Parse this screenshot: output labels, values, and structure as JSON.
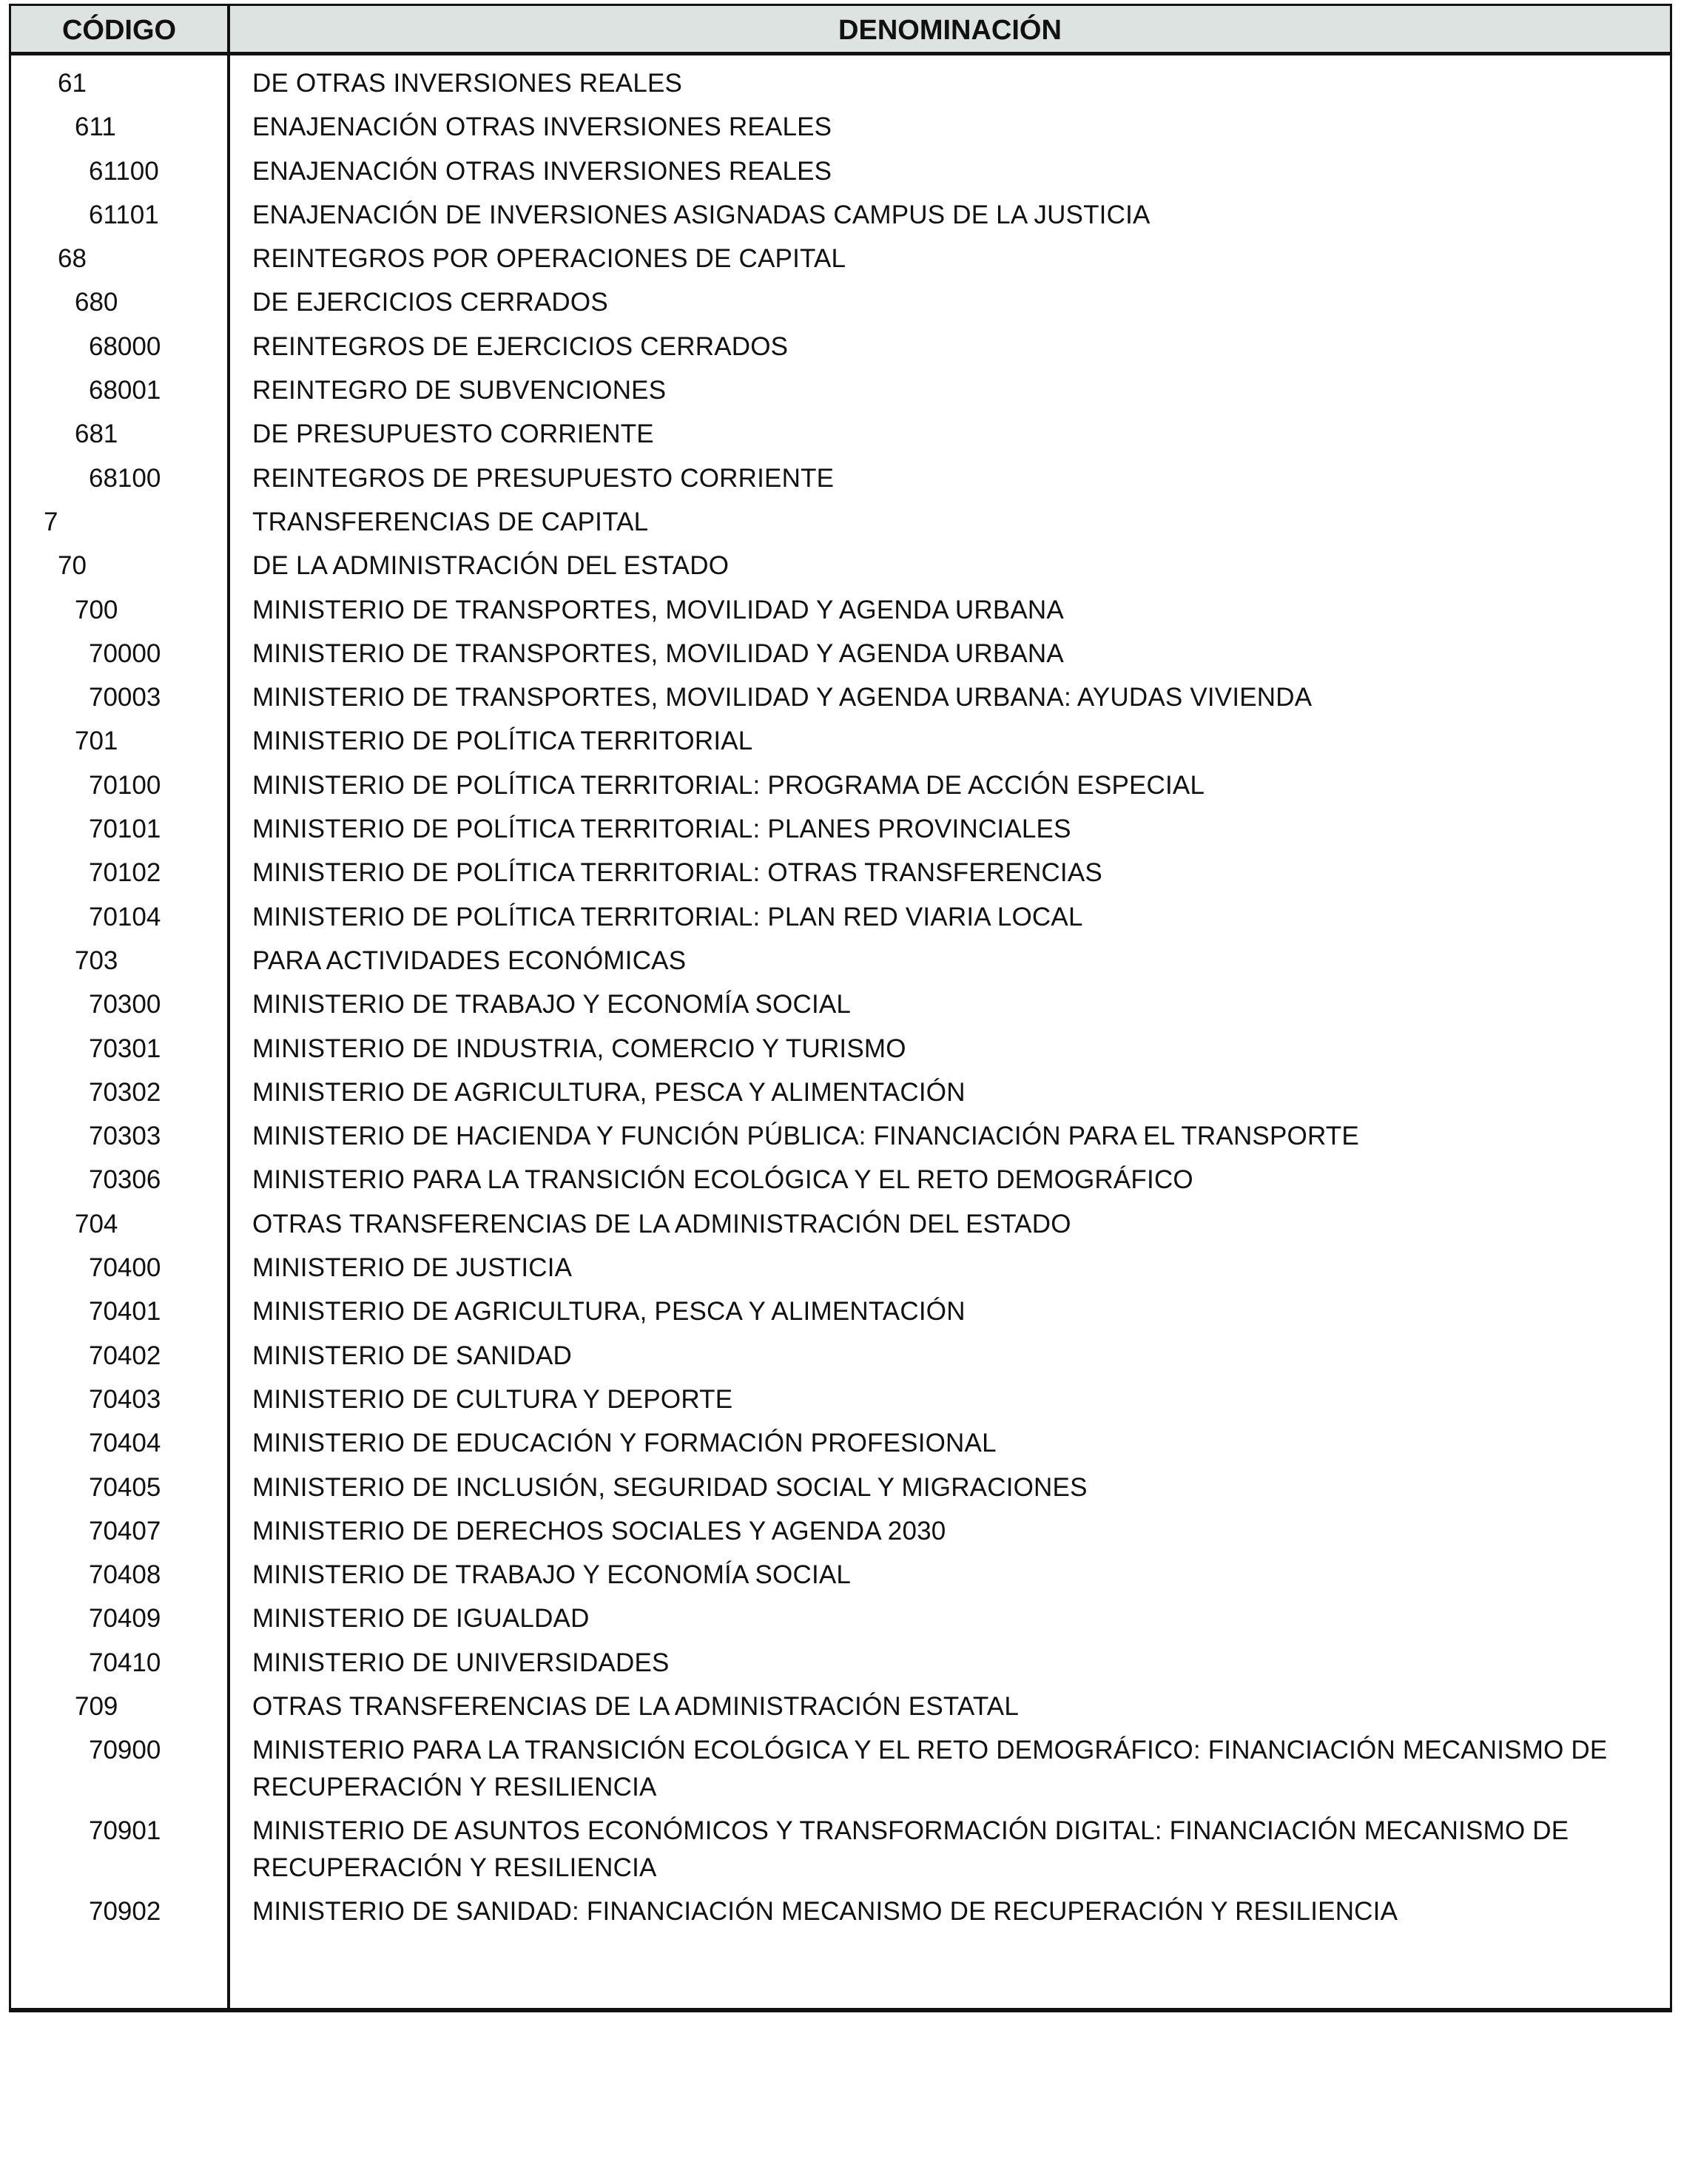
{
  "header": {
    "code": "CÓDIGO",
    "denomination": "DENOMINACIÓN"
  },
  "rows": [
    {
      "code": "61",
      "text": "DE OTRAS INVERSIONES REALES"
    },
    {
      "code": "611",
      "text": "ENAJENACIÓN OTRAS INVERSIONES REALES"
    },
    {
      "code": "61100",
      "text": "ENAJENACIÓN OTRAS INVERSIONES REALES"
    },
    {
      "code": "61101",
      "text": "ENAJENACIÓN DE INVERSIONES ASIGNADAS CAMPUS DE LA JUSTICIA"
    },
    {
      "code": "68",
      "text": "REINTEGROS POR OPERACIONES DE CAPITAL"
    },
    {
      "code": "680",
      "text": "DE EJERCICIOS CERRADOS"
    },
    {
      "code": "68000",
      "text": "REINTEGROS DE EJERCICIOS CERRADOS"
    },
    {
      "code": "68001",
      "text": "REINTEGRO DE SUBVENCIONES"
    },
    {
      "code": "681",
      "text": "DE PRESUPUESTO CORRIENTE"
    },
    {
      "code": "68100",
      "text": "REINTEGROS DE PRESUPUESTO CORRIENTE"
    },
    {
      "code": "7",
      "text": "TRANSFERENCIAS DE CAPITAL"
    },
    {
      "code": "70",
      "text": "DE LA ADMINISTRACIÓN DEL ESTADO"
    },
    {
      "code": "700",
      "text": "MINISTERIO DE TRANSPORTES, MOVILIDAD Y AGENDA URBANA"
    },
    {
      "code": "70000",
      "text": "MINISTERIO DE TRANSPORTES, MOVILIDAD Y AGENDA URBANA"
    },
    {
      "code": "70003",
      "text": "MINISTERIO DE TRANSPORTES, MOVILIDAD Y AGENDA URBANA: AYUDAS VIVIENDA"
    },
    {
      "code": "701",
      "text": "MINISTERIO DE POLÍTICA TERRITORIAL"
    },
    {
      "code": "70100",
      "text": "MINISTERIO DE POLÍTICA TERRITORIAL: PROGRAMA DE ACCIÓN ESPECIAL"
    },
    {
      "code": "70101",
      "text": "MINISTERIO DE POLÍTICA TERRITORIAL: PLANES PROVINCIALES"
    },
    {
      "code": "70102",
      "text": "MINISTERIO DE POLÍTICA TERRITORIAL: OTRAS TRANSFERENCIAS"
    },
    {
      "code": "70104",
      "text": "MINISTERIO DE POLÍTICA TERRITORIAL: PLAN RED VIARIA LOCAL"
    },
    {
      "code": "703",
      "text": "PARA ACTIVIDADES ECONÓMICAS"
    },
    {
      "code": "70300",
      "text": "MINISTERIO DE TRABAJO Y ECONOMÍA SOCIAL"
    },
    {
      "code": "70301",
      "text": "MINISTERIO DE INDUSTRIA, COMERCIO Y TURISMO"
    },
    {
      "code": "70302",
      "text": "MINISTERIO DE AGRICULTURA, PESCA Y ALIMENTACIÓN"
    },
    {
      "code": "70303",
      "text": "MINISTERIO DE HACIENDA Y FUNCIÓN PÚBLICA: FINANCIACIÓN PARA EL TRANSPORTE"
    },
    {
      "code": "70306",
      "text": "MINISTERIO PARA LA TRANSICIÓN ECOLÓGICA Y EL RETO DEMOGRÁFICO"
    },
    {
      "code": "704",
      "text": "OTRAS TRANSFERENCIAS DE LA ADMINISTRACIÓN DEL ESTADO"
    },
    {
      "code": "70400",
      "text": "MINISTERIO DE JUSTICIA"
    },
    {
      "code": "70401",
      "text": "MINISTERIO DE AGRICULTURA, PESCA Y ALIMENTACIÓN"
    },
    {
      "code": "70402",
      "text": "MINISTERIO DE SANIDAD"
    },
    {
      "code": "70403",
      "text": "MINISTERIO DE CULTURA Y DEPORTE"
    },
    {
      "code": "70404",
      "text": "MINISTERIO DE EDUCACIÓN Y FORMACIÓN PROFESIONAL"
    },
    {
      "code": "70405",
      "text": "MINISTERIO DE INCLUSIÓN, SEGURIDAD SOCIAL Y MIGRACIONES"
    },
    {
      "code": "70407",
      "text": "MINISTERIO DE DERECHOS SOCIALES Y AGENDA 2030"
    },
    {
      "code": "70408",
      "text": "MINISTERIO DE TRABAJO Y ECONOMÍA SOCIAL"
    },
    {
      "code": "70409",
      "text": "MINISTERIO DE IGUALDAD"
    },
    {
      "code": "70410",
      "text": "MINISTERIO DE UNIVERSIDADES"
    },
    {
      "code": "709",
      "text": "OTRAS TRANSFERENCIAS DE LA ADMINISTRACIÓN ESTATAL"
    },
    {
      "code": "70900",
      "text": "MINISTERIO PARA LA TRANSICIÓN ECOLÓGICA Y EL RETO DEMOGRÁFICO: FINANCIACIÓN MECANISMO DE RECUPERACIÓN Y RESILIENCIA"
    },
    {
      "code": "70901",
      "text": "MINISTERIO DE ASUNTOS ECONÓMICOS Y TRANSFORMACIÓN DIGITAL: FINANCIACIÓN MECANISMO DE RECUPERACIÓN Y RESILIENCIA"
    },
    {
      "code": "70902",
      "text": "MINISTERIO DE SANIDAD: FINANCIACIÓN MECANISMO DE RECUPERACIÓN Y RESILIENCIA"
    }
  ]
}
